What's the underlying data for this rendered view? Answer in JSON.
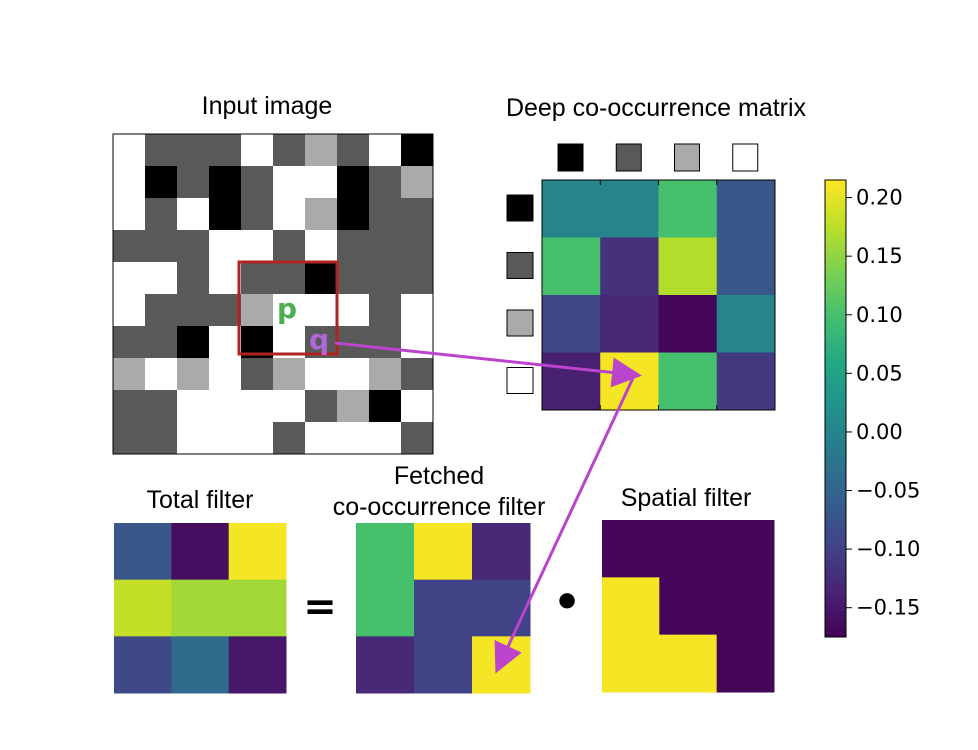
{
  "titles": {
    "input": "Input image",
    "matrix": "Deep co-occurrence matrix",
    "total": "Total filter",
    "fetched_line1": "Fetched",
    "fetched_line2": "co-occurrence filter",
    "spatial": "Spatial filter"
  },
  "operators": {
    "equals": "=",
    "dot": "•"
  },
  "labels": {
    "p": "p",
    "q": "q"
  },
  "colors": {
    "black": "#000000",
    "dark_gray": "#595959",
    "light_gray": "#aaaaaa",
    "white": "#ffffff",
    "window_border": "#b22222",
    "p_color": "#4caf50",
    "q_color": "#b066d9",
    "arrow": "#bb44cc"
  },
  "input_image": {
    "legend": "0=white, 1=dark gray, 2=light gray, 3=black",
    "grid": [
      [
        0,
        1,
        1,
        1,
        0,
        1,
        2,
        1,
        0,
        3
      ],
      [
        0,
        3,
        1,
        3,
        1,
        0,
        0,
        3,
        1,
        2
      ],
      [
        0,
        1,
        0,
        3,
        1,
        0,
        2,
        3,
        1,
        1
      ],
      [
        1,
        1,
        1,
        0,
        0,
        1,
        0,
        1,
        1,
        1
      ],
      [
        0,
        0,
        1,
        0,
        1,
        1,
        3,
        1,
        1,
        1
      ],
      [
        0,
        1,
        1,
        1,
        2,
        0,
        0,
        0,
        1,
        0
      ],
      [
        1,
        1,
        3,
        0,
        3,
        0,
        1,
        1,
        1,
        0
      ],
      [
        2,
        0,
        2,
        0,
        1,
        2,
        0,
        0,
        2,
        1
      ],
      [
        1,
        1,
        0,
        0,
        0,
        0,
        1,
        2,
        3,
        0
      ],
      [
        1,
        1,
        0,
        0,
        0,
        1,
        0,
        0,
        0,
        1
      ]
    ]
  },
  "cooccurrence_matrix": {
    "values": [
      [
        0.0,
        0.0,
        0.1,
        -0.07
      ],
      [
        0.1,
        -0.12,
        0.17,
        -0.07
      ],
      [
        -0.09,
        -0.13,
        -0.17,
        0.0
      ],
      [
        -0.14,
        0.21,
        0.1,
        -0.11
      ]
    ],
    "header_swatches": [
      "black",
      "dark_gray",
      "light_gray",
      "white"
    ]
  },
  "colorbar": {
    "min": -0.175,
    "max": 0.215,
    "ticks": [
      {
        "value": 0.2,
        "label": "0.20"
      },
      {
        "value": 0.15,
        "label": "0.15"
      },
      {
        "value": 0.1,
        "label": "0.10"
      },
      {
        "value": 0.05,
        "label": "0.05"
      },
      {
        "value": 0.0,
        "label": "0.00"
      },
      {
        "value": -0.05,
        "label": "−0.05"
      },
      {
        "value": -0.1,
        "label": "−0.10"
      },
      {
        "value": -0.15,
        "label": "−0.15"
      }
    ]
  },
  "total_filter": [
    [
      -0.07,
      -0.16,
      0.21
    ],
    [
      0.18,
      0.16,
      0.16
    ],
    [
      -0.09,
      -0.04,
      -0.15
    ]
  ],
  "fetched_filter": [
    [
      0.1,
      0.21,
      -0.13
    ],
    [
      0.1,
      -0.1,
      -0.1
    ],
    [
      -0.13,
      -0.1,
      0.21
    ]
  ],
  "spatial_filter": [
    [
      -0.17,
      -0.17,
      -0.17
    ],
    [
      0.21,
      -0.17,
      -0.17
    ],
    [
      0.21,
      0.21,
      -0.17
    ]
  ]
}
